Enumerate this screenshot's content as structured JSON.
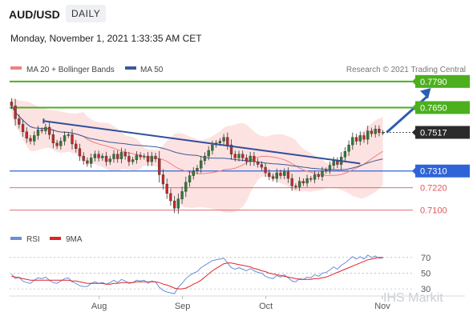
{
  "header": {
    "symbol": "AUD/USD",
    "timeframe": "DAILY",
    "timestamp": "Monday, November 1, 2021 1:33:35 AM CET"
  },
  "legend": {
    "bollinger_label": "MA 20 + Bollinger Bands",
    "ma50_label": "MA 50",
    "credit": "Research © 2021 Trading Central",
    "rsi_label": "RSI",
    "rsi_ma_label": "9MA"
  },
  "watermark": "IHS Markit",
  "colors": {
    "resistance": "#4caf1e",
    "support_major": "#2f64d8",
    "support_minor": "#e05757",
    "current": "#2b2b2b",
    "trend": "#2f4f9a",
    "arrow": "#2a5fb0",
    "bollinger_fill": "#fde2e2",
    "ma20": "#f08080",
    "ma50": "#3a5a9a",
    "candle_up": "#2e7d32",
    "candle_down": "#c62828",
    "rsi": "#6a8fd8",
    "rsi_ma": "#e02424"
  },
  "chart_data": [
    {
      "type": "candlestick",
      "y_range": [
        0.7,
        0.7815
      ],
      "x_ticks": [
        "Aug",
        "Sep",
        "Oct",
        "Nov"
      ],
      "levels": [
        {
          "label": "0.7790",
          "value": 0.779,
          "kind": "resistance"
        },
        {
          "label": "0.7650",
          "value": 0.765,
          "kind": "resistance"
        },
        {
          "label": "0.7517",
          "value": 0.7517,
          "kind": "current"
        },
        {
          "label": "0.7310",
          "value": 0.731,
          "kind": "support_major"
        },
        {
          "label": "0.7220",
          "value": 0.722,
          "kind": "support_minor"
        },
        {
          "label": "0.7100",
          "value": 0.71,
          "kind": "support_minor"
        }
      ],
      "trendline": {
        "start": [
          0,
          0.7578
        ],
        "end": [
          92,
          0.735
        ]
      },
      "forecast_arrow": {
        "start": [
          99,
          0.7517
        ],
        "end": [
          106,
          0.7755
        ]
      },
      "closes": [
        0.766,
        0.759,
        0.756,
        0.752,
        0.7485,
        0.747,
        0.75,
        0.753,
        0.7525,
        0.7545,
        0.7505,
        0.746,
        0.7445,
        0.747,
        0.75,
        0.7505,
        0.7455,
        0.743,
        0.739,
        0.7365,
        0.735,
        0.738,
        0.74,
        0.738,
        0.739,
        0.736,
        0.7375,
        0.74,
        0.7375,
        0.741,
        0.739,
        0.736,
        0.737,
        0.7395,
        0.7385,
        0.739,
        0.736,
        0.739,
        0.7375,
        0.729,
        0.724,
        0.719,
        0.715,
        0.711,
        0.716,
        0.72,
        0.725,
        0.7285,
        0.731,
        0.7325,
        0.7365,
        0.739,
        0.742,
        0.745,
        0.746,
        0.747,
        0.749,
        0.745,
        0.74,
        0.738,
        0.74,
        0.738,
        0.736,
        0.739,
        0.736,
        0.7345,
        0.733,
        0.73,
        0.728,
        0.727,
        0.73,
        0.7285,
        0.7305,
        0.727,
        0.723,
        0.7225,
        0.7255,
        0.7245,
        0.727,
        0.7265,
        0.729,
        0.728,
        0.731,
        0.7315,
        0.734,
        0.7365,
        0.7345,
        0.7385,
        0.7415,
        0.745,
        0.749,
        0.747,
        0.75,
        0.748,
        0.7525,
        0.751,
        0.7535,
        0.7515,
        0.7517
      ]
    },
    {
      "type": "line",
      "y_range": [
        25,
        80
      ],
      "y_ticks": [
        70,
        50,
        30
      ],
      "series": [
        {
          "name": "RSI",
          "values": [
            49,
            43,
            45,
            40,
            38,
            37,
            41,
            44,
            43,
            45,
            41,
            38,
            37,
            40,
            43,
            44,
            39,
            37,
            34,
            33,
            33,
            37,
            39,
            37,
            38,
            36,
            38,
            41,
            38,
            42,
            40,
            37,
            38,
            41,
            40,
            41,
            37,
            40,
            39,
            32,
            28,
            26,
            25,
            24,
            32,
            37,
            43,
            47,
            50,
            52,
            57,
            60,
            63,
            66,
            67,
            68,
            69,
            63,
            57,
            55,
            57,
            55,
            53,
            56,
            53,
            51,
            50,
            46,
            44,
            43,
            47,
            45,
            48,
            44,
            40,
            39,
            43,
            42,
            45,
            44,
            48,
            46,
            50,
            51,
            54,
            58,
            55,
            60,
            63,
            67,
            71,
            68,
            71,
            68,
            73,
            70,
            72,
            69,
            69
          ]
        },
        {
          "name": "9MA",
          "values": [
            46,
            45,
            44,
            43,
            42,
            41,
            41,
            41,
            41,
            41,
            41,
            41,
            41,
            41,
            41,
            41,
            40,
            40,
            39,
            38,
            37,
            37,
            37,
            37,
            37,
            36,
            36,
            37,
            37,
            38,
            38,
            38,
            38,
            39,
            39,
            39,
            39,
            39,
            39,
            38,
            36,
            35,
            33,
            31,
            30,
            30,
            31,
            33,
            36,
            38,
            41,
            45,
            49,
            53,
            56,
            59,
            62,
            63,
            63,
            62,
            61,
            60,
            59,
            58,
            56,
            55,
            53,
            52,
            50,
            49,
            48,
            47,
            46,
            45,
            44,
            43,
            42,
            42,
            42,
            42,
            43,
            43,
            44,
            45,
            47,
            49,
            51,
            53,
            55,
            57,
            59,
            61,
            63,
            65,
            67,
            68,
            69,
            70,
            70
          ]
        }
      ]
    }
  ]
}
